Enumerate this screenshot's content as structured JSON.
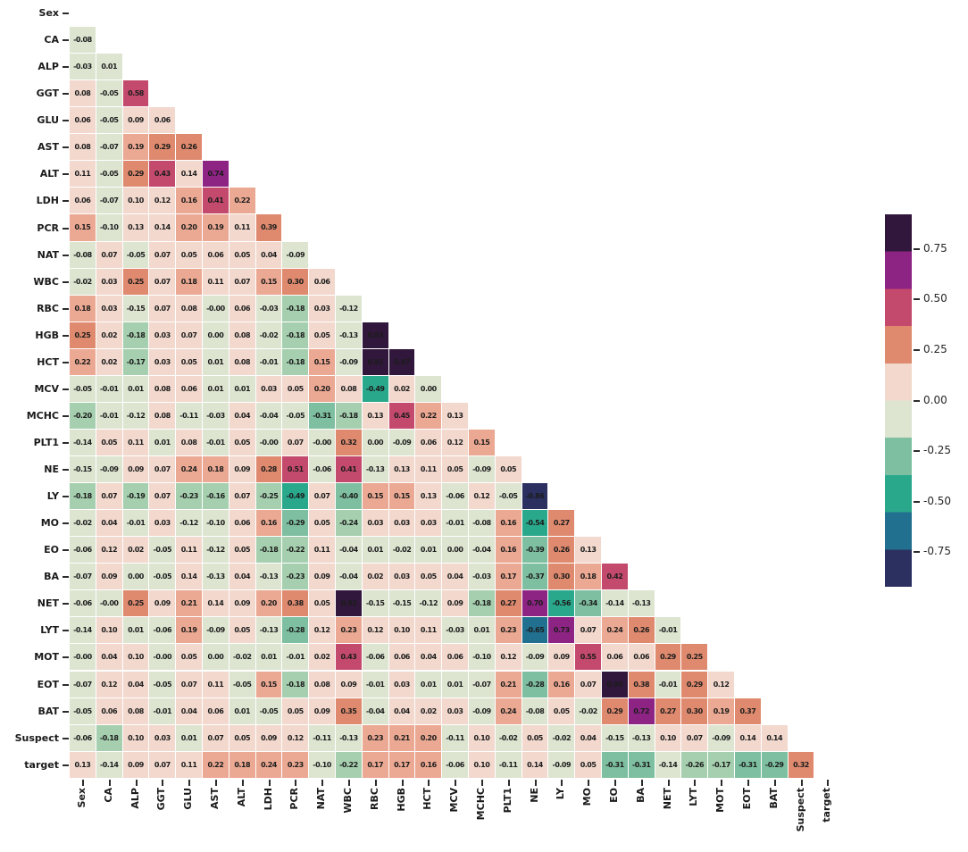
{
  "chart_data": {
    "type": "heatmap",
    "title": "",
    "xlabel": "",
    "ylabel": "",
    "layout": "lower-triangle correlation matrix, diagonal masked",
    "grid": "white 1px gaps between cells",
    "legend_position": "colorbar right",
    "labels": [
      "Sex",
      "CA",
      "ALP",
      "GGT",
      "GLU",
      "AST",
      "ALT",
      "LDH",
      "PCR",
      "NAT",
      "WBC",
      "RBC",
      "HGB",
      "HCT",
      "MCV",
      "MCHC",
      "PLT1",
      "NE",
      "LY",
      "MO",
      "EO",
      "BA",
      "NET",
      "LYT",
      "MOT",
      "EOT",
      "BAT",
      "Suspect",
      "target"
    ],
    "rows": [
      {
        "label": "CA",
        "values": [
          "-0.08"
        ]
      },
      {
        "label": "ALP",
        "values": [
          "-0.03",
          "0.01"
        ]
      },
      {
        "label": "GGT",
        "values": [
          "0.08",
          "-0.05",
          "0.58"
        ]
      },
      {
        "label": "GLU",
        "values": [
          "0.06",
          "-0.05",
          "0.09",
          "0.06"
        ]
      },
      {
        "label": "AST",
        "values": [
          "0.08",
          "-0.07",
          "0.19",
          "0.29",
          "0.26"
        ]
      },
      {
        "label": "ALT",
        "values": [
          "0.11",
          "-0.05",
          "0.29",
          "0.43",
          "0.14",
          "0.74"
        ]
      },
      {
        "label": "LDH",
        "values": [
          "0.06",
          "-0.07",
          "0.10",
          "0.12",
          "0.16",
          "0.41",
          "0.22"
        ]
      },
      {
        "label": "PCR",
        "values": [
          "0.15",
          "-0.10",
          "0.13",
          "0.14",
          "0.20",
          "0.19",
          "0.11",
          "0.39"
        ]
      },
      {
        "label": "NAT",
        "values": [
          "-0.08",
          "0.07",
          "-0.05",
          "0.07",
          "0.05",
          "0.06",
          "0.05",
          "0.04",
          "-0.09"
        ]
      },
      {
        "label": "WBC",
        "values": [
          "-0.02",
          "0.03",
          "0.25",
          "0.07",
          "0.18",
          "0.11",
          "0.07",
          "0.15",
          "0.30",
          "0.06"
        ]
      },
      {
        "label": "RBC",
        "values": [
          "0.18",
          "0.03",
          "-0.15",
          "0.07",
          "0.08",
          "-0.00",
          "0.06",
          "-0.03",
          "-0.18",
          "0.03",
          "-0.12"
        ]
      },
      {
        "label": "HGB",
        "values": [
          "0.25",
          "0.02",
          "-0.18",
          "0.03",
          "0.07",
          "0.00",
          "0.08",
          "-0.02",
          "-0.18",
          "0.05",
          "-0.13",
          "0.93"
        ]
      },
      {
        "label": "HCT",
        "values": [
          "0.22",
          "0.02",
          "-0.17",
          "0.03",
          "0.05",
          "0.01",
          "0.08",
          "-0.01",
          "-0.18",
          "0.15",
          "-0.09",
          "0.91",
          "0.97"
        ]
      },
      {
        "label": "MCV",
        "values": [
          "-0.05",
          "-0.01",
          "0.01",
          "0.08",
          "0.06",
          "0.01",
          "0.01",
          "0.03",
          "0.05",
          "0.20",
          "0.08",
          "-0.49",
          "0.02",
          "0.00"
        ]
      },
      {
        "label": "MCHC",
        "values": [
          "-0.20",
          "-0.01",
          "-0.12",
          "0.08",
          "-0.11",
          "-0.03",
          "0.04",
          "-0.04",
          "-0.05",
          "-0.31",
          "-0.18",
          "0.13",
          "0.45",
          "0.22",
          "0.13"
        ]
      },
      {
        "label": "PLT1",
        "values": [
          "-0.14",
          "0.05",
          "0.11",
          "0.01",
          "0.08",
          "-0.01",
          "0.05",
          "-0.00",
          "0.07",
          "-0.00",
          "0.32",
          "0.00",
          "-0.09",
          "0.06",
          "0.12",
          "0.15"
        ]
      },
      {
        "label": "NE",
        "values": [
          "-0.15",
          "-0.09",
          "0.09",
          "0.07",
          "0.24",
          "0.18",
          "0.09",
          "0.28",
          "0.51",
          "-0.06",
          "0.41",
          "-0.13",
          "0.13",
          "0.11",
          "0.05",
          "-0.09",
          "0.05"
        ]
      },
      {
        "label": "LY",
        "values": [
          "-0.18",
          "0.07",
          "-0.19",
          "0.07",
          "-0.23",
          "-0.16",
          "0.07",
          "-0.25",
          "-0.49",
          "0.07",
          "-0.40",
          "0.15",
          "0.15",
          "0.13",
          "-0.06",
          "0.12",
          "-0.05",
          "-0.86"
        ]
      },
      {
        "label": "MO",
        "values": [
          "-0.02",
          "0.04",
          "-0.01",
          "0.03",
          "-0.12",
          "-0.10",
          "0.06",
          "0.16",
          "-0.29",
          "0.05",
          "-0.24",
          "0.03",
          "0.03",
          "0.03",
          "-0.01",
          "-0.08",
          "0.16",
          "-0.54",
          "0.27"
        ]
      },
      {
        "label": "EO",
        "values": [
          "-0.06",
          "0.12",
          "0.02",
          "-0.05",
          "0.11",
          "-0.12",
          "0.05",
          "-0.18",
          "-0.22",
          "0.11",
          "-0.04",
          "0.01",
          "-0.02",
          "0.01",
          "0.00",
          "-0.04",
          "0.16",
          "-0.39",
          "0.26",
          "0.13"
        ]
      },
      {
        "label": "BA",
        "values": [
          "-0.07",
          "0.09",
          "0.00",
          "-0.05",
          "0.14",
          "-0.13",
          "0.04",
          "-0.13",
          "-0.23",
          "0.09",
          "-0.04",
          "0.02",
          "0.03",
          "0.05",
          "0.04",
          "-0.03",
          "0.17",
          "-0.37",
          "0.30",
          "0.18",
          "0.42"
        ]
      },
      {
        "label": "NET",
        "values": [
          "-0.06",
          "-0.00",
          "0.25",
          "0.09",
          "0.21",
          "0.14",
          "0.09",
          "0.20",
          "0.38",
          "0.05",
          "0.92",
          "-0.15",
          "-0.15",
          "-0.12",
          "0.09",
          "-0.18",
          "0.27",
          "0.70",
          "-0.56",
          "-0.34",
          "-0.14",
          "-0.13"
        ]
      },
      {
        "label": "LYT",
        "values": [
          "-0.14",
          "0.10",
          "0.01",
          "-0.06",
          "0.19",
          "-0.09",
          "0.05",
          "-0.13",
          "-0.28",
          "0.12",
          "0.23",
          "0.12",
          "0.10",
          "0.11",
          "-0.03",
          "0.01",
          "0.23",
          "-0.65",
          "0.73",
          "0.07",
          "0.24",
          "0.26",
          "-0.01"
        ]
      },
      {
        "label": "MOT",
        "values": [
          "-0.00",
          "0.04",
          "0.10",
          "-0.00",
          "0.05",
          "0.00",
          "-0.02",
          "0.01",
          "-0.01",
          "0.02",
          "0.43",
          "-0.06",
          "0.06",
          "0.04",
          "0.06",
          "-0.10",
          "0.12",
          "-0.09",
          "0.09",
          "0.55",
          "0.06",
          "0.06",
          "0.29",
          "0.25"
        ]
      },
      {
        "label": "EOT",
        "values": [
          "-0.07",
          "0.12",
          "0.04",
          "-0.05",
          "0.07",
          "0.11",
          "-0.05",
          "0.15",
          "-0.18",
          "0.08",
          "0.09",
          "-0.01",
          "0.03",
          "0.01",
          "0.01",
          "-0.07",
          "0.21",
          "-0.28",
          "0.16",
          "0.07",
          "0.90",
          "0.38",
          "-0.01",
          "0.29",
          "0.12"
        ]
      },
      {
        "label": "BAT",
        "values": [
          "-0.05",
          "0.06",
          "0.08",
          "-0.01",
          "0.04",
          "0.06",
          "0.01",
          "-0.05",
          "0.05",
          "0.09",
          "0.35",
          "-0.04",
          "0.04",
          "0.02",
          "0.03",
          "-0.09",
          "0.24",
          "-0.08",
          "0.05",
          "-0.02",
          "0.29",
          "0.72",
          "0.27",
          "0.30",
          "0.19",
          "0.37"
        ]
      },
      {
        "label": "Suspect",
        "values": [
          "-0.06",
          "-0.18",
          "0.10",
          "0.03",
          "0.01",
          "0.07",
          "0.05",
          "0.09",
          "0.12",
          "-0.11",
          "-0.13",
          "0.23",
          "0.21",
          "0.20",
          "-0.11",
          "0.10",
          "-0.02",
          "0.05",
          "-0.02",
          "0.04",
          "-0.15",
          "-0.13",
          "0.10",
          "0.07",
          "-0.09",
          "0.14",
          "0.14"
        ]
      },
      {
        "label": "target",
        "values": [
          "0.13",
          "-0.14",
          "0.09",
          "0.07",
          "0.11",
          "0.22",
          "0.18",
          "0.24",
          "0.23",
          "-0.10",
          "-0.22",
          "0.17",
          "0.17",
          "0.16",
          "-0.06",
          "0.10",
          "-0.11",
          "0.14",
          "-0.09",
          "0.05",
          "-0.31",
          "-0.31",
          "-0.14",
          "-0.26",
          "-0.17",
          "-0.31",
          "-0.29",
          "0.32"
        ]
      }
    ],
    "value_color_bands": [
      [
        0.8,
        "#31173b"
      ],
      [
        0.6,
        "#8d2383"
      ],
      [
        0.4,
        "#c44a6d"
      ],
      [
        0.25,
        "#df8a6e"
      ],
      [
        0.15,
        "#eba892"
      ],
      [
        0.02,
        "#f2d8cd"
      ],
      [
        -0.15,
        "#dde5d1"
      ],
      [
        -0.27,
        "#a5cfae"
      ],
      [
        -0.45,
        "#7dbfa0"
      ],
      [
        -0.6,
        "#2aa88c"
      ],
      [
        -0.8,
        "#21708f"
      ],
      [
        -99,
        "#2b3060"
      ]
    ],
    "colorbar": {
      "band_colors_top_to_bottom": [
        "#31173b",
        "#8d2383",
        "#c44a6d",
        "#df8a6e",
        "#f2d8cd",
        "#dde5d1",
        "#7dbfa0",
        "#2aa88c",
        "#21708f",
        "#2b3060"
      ],
      "vmax": 0.92,
      "vmin": -0.92,
      "ticks": [
        {
          "value": 0.75,
          "label": "0.75"
        },
        {
          "value": 0.5,
          "label": "0.50"
        },
        {
          "value": 0.25,
          "label": "0.25"
        },
        {
          "value": 0.0,
          "label": "0.00"
        },
        {
          "value": -0.25,
          "label": "-0.25"
        },
        {
          "value": -0.5,
          "label": "-0.50"
        },
        {
          "value": -0.75,
          "label": "-0.75"
        }
      ]
    },
    "cell_text_color": "#1c1c1c",
    "background_color": "#ffffff"
  }
}
